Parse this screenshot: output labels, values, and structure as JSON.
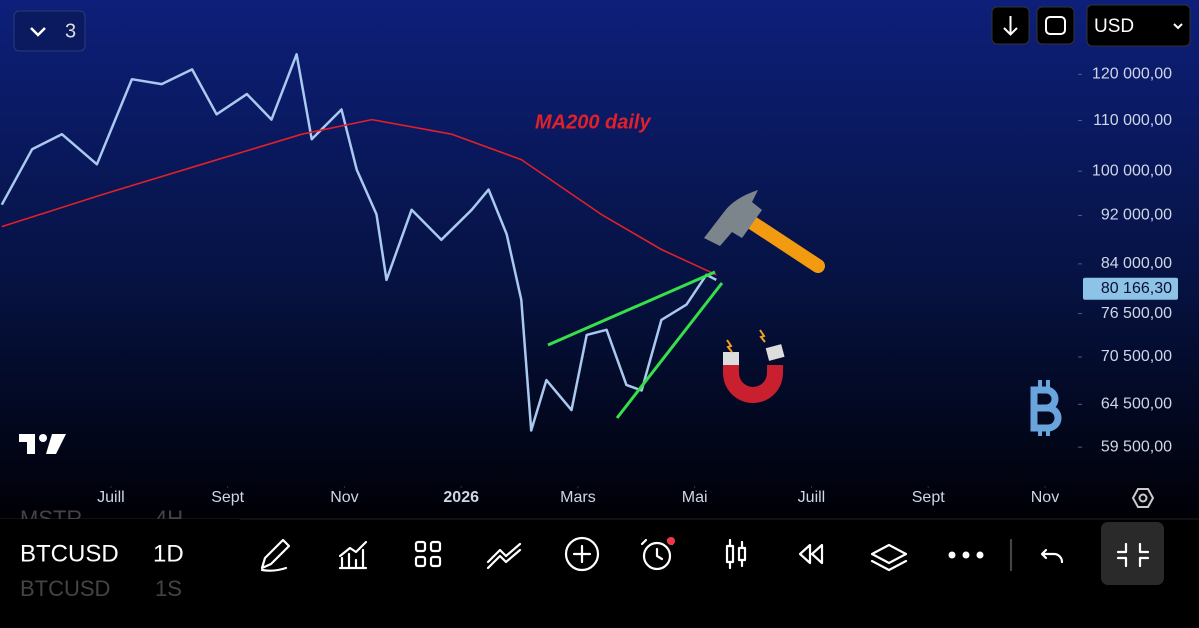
{
  "header": {
    "layout_count": "3",
    "currency": "USD"
  },
  "chart_data": {
    "type": "line",
    "annotation": "MA200 daily",
    "log_scale": true,
    "xlim": [
      -1.9,
      16.6
    ],
    "xticks": [
      {
        "value": 0,
        "label": "Juill"
      },
      {
        "value": 2,
        "label": "Sept"
      },
      {
        "value": 4,
        "label": "Nov"
      },
      {
        "value": 6,
        "label": "2026"
      },
      {
        "value": 8,
        "label": "Mars"
      },
      {
        "value": 10,
        "label": "Mai"
      },
      {
        "value": 12,
        "label": "Juill"
      },
      {
        "value": 14,
        "label": "Sept"
      },
      {
        "value": 16,
        "label": "Nov"
      }
    ],
    "ylim": [
      57000,
      138000
    ],
    "yticks": [
      {
        "value": 59500,
        "label": "59 500,00"
      },
      {
        "value": 64500,
        "label": "64 500,00"
      },
      {
        "value": 70500,
        "label": "70 500,00"
      },
      {
        "value": 76500,
        "label": "76 500,00"
      },
      {
        "value": 84000,
        "label": "84 000,00"
      },
      {
        "value": 92000,
        "label": "92 000,00"
      },
      {
        "value": 100000,
        "label": "100 000,00"
      },
      {
        "value": 110000,
        "label": "110 000,00"
      },
      {
        "value": 120000,
        "label": "120 000,00"
      }
    ],
    "current_price": {
      "value": 80166.3,
      "label": "80 166,30"
    },
    "series": [
      {
        "color": "#a9c9ee",
        "x": [
          -1.87,
          -1.35,
          -0.84,
          -0.24,
          0.36,
          0.87,
          1.39,
          1.81,
          2.33,
          2.75,
          3.18,
          3.44,
          3.95,
          4.21,
          4.55,
          4.72,
          5.15,
          5.66,
          6.18,
          6.47,
          6.78,
          7.03,
          7.2,
          7.46,
          7.89,
          8.15,
          8.49,
          8.83,
          9.09,
          9.43,
          9.86,
          10.2,
          10.37
        ],
        "values": [
          93900,
          104200,
          107200,
          101300,
          118900,
          117800,
          121100,
          111300,
          115600,
          110200,
          124600,
          106200,
          112300,
          100300,
          92200,
          81500,
          93000,
          87900,
          93000,
          96600,
          88800,
          78500,
          61400,
          67500,
          63800,
          73500,
          74200,
          66900,
          66200,
          75600,
          77800,
          82300,
          81500
        ]
      },
      {
        "color": "#e0202a",
        "x": [
          -1.87,
          -0.15,
          1.56,
          3.27,
          4.47,
          5.84,
          7.03,
          8.4,
          9.43,
          10.37
        ],
        "values": [
          90100,
          95700,
          101300,
          107200,
          110200,
          107200,
          102200,
          92200,
          86300,
          82300
        ]
      }
    ]
  },
  "watchlist": [
    {
      "symbol": "MSTR",
      "interval": "4H"
    },
    {
      "symbol": "BTCUSD",
      "interval": "1D"
    },
    {
      "symbol": "BTCUSD",
      "interval": "1S"
    }
  ]
}
